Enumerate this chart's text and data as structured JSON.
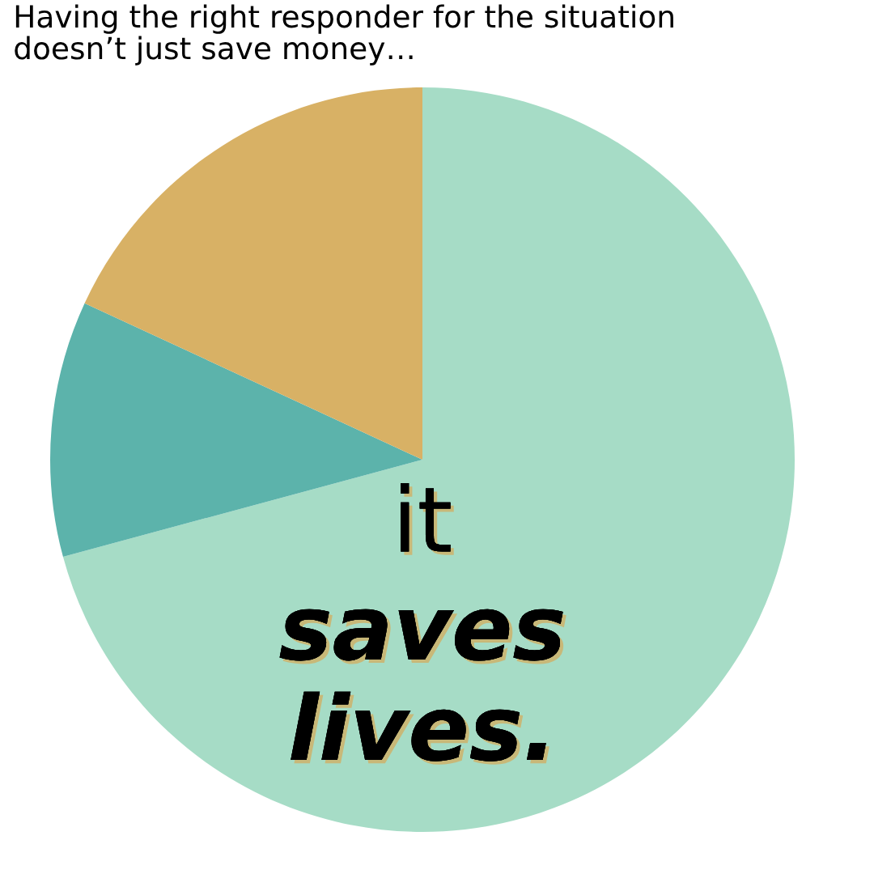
{
  "chart_data": {
    "type": "pie",
    "title": "Having the right responder for the situation\ndoesn’t just save money…",
    "categories": [
      null,
      null,
      null
    ],
    "values": [
      70.8,
      11.1,
      18.1
    ],
    "colors": [
      "#a6dcc6",
      "#5cb3ab",
      "#d8b165"
    ],
    "annotations": [
      "it",
      "saves",
      "lives."
    ]
  }
}
